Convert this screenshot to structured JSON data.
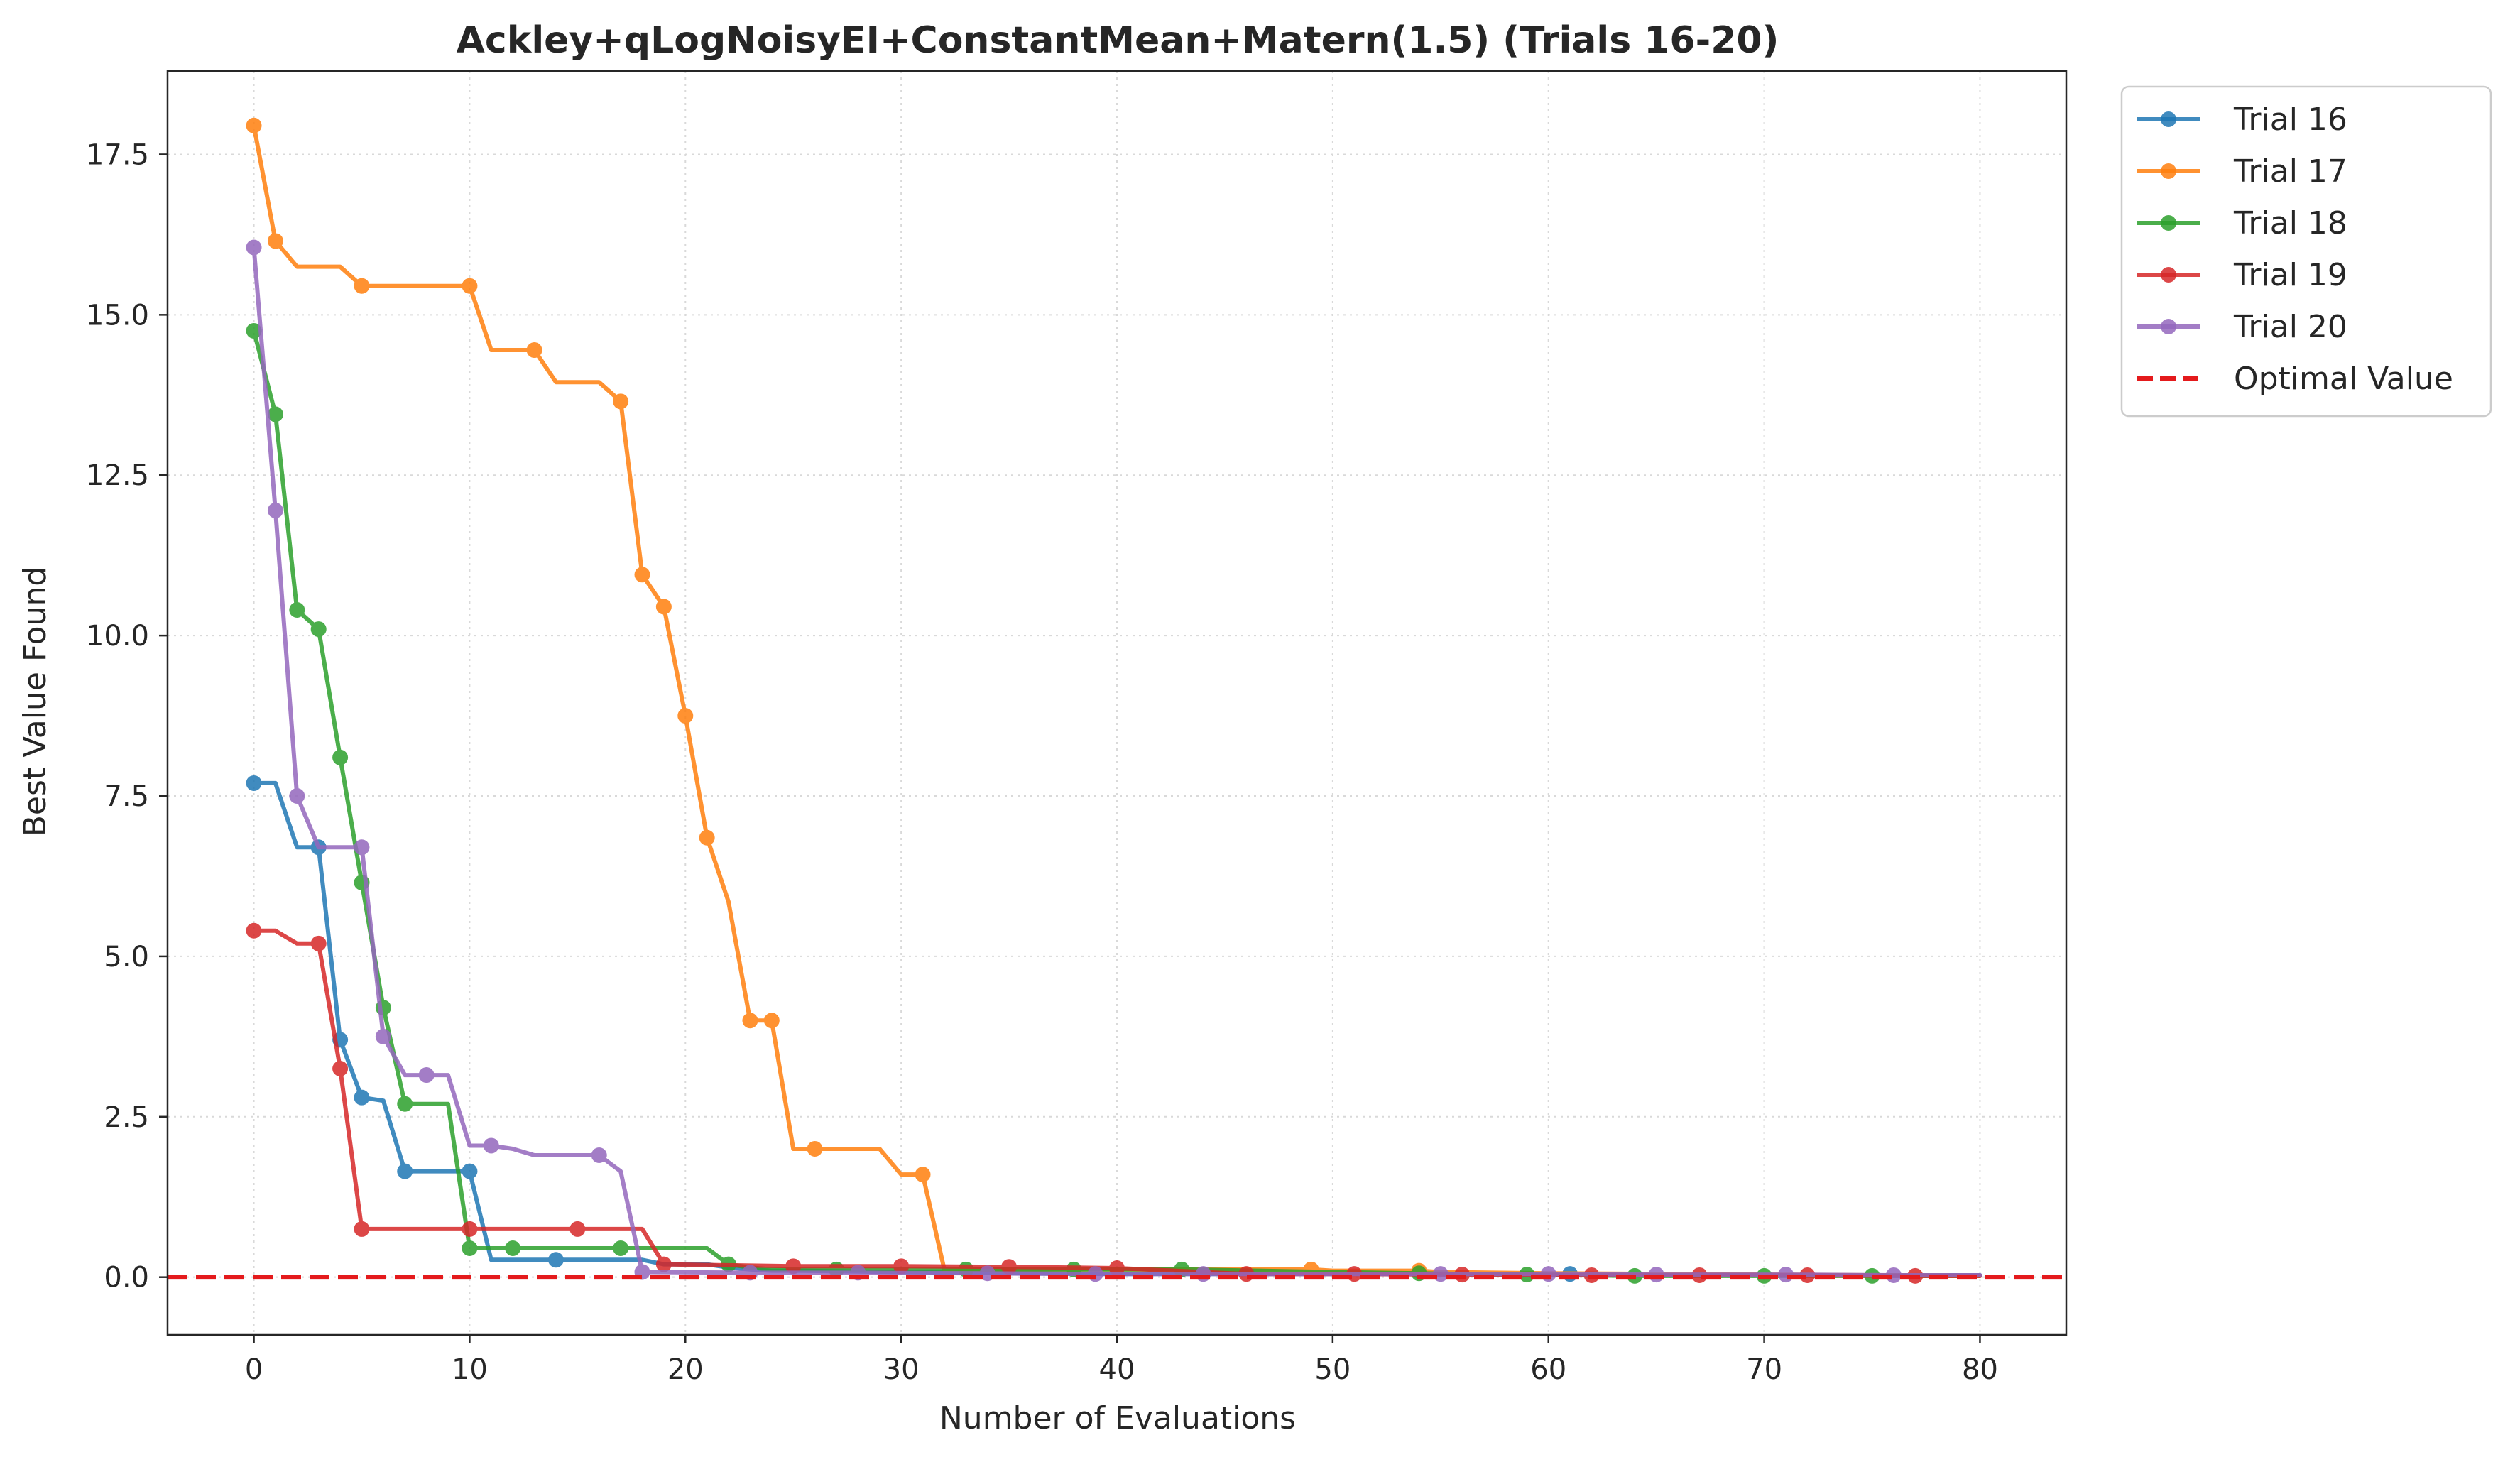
{
  "chart_data": {
    "type": "line",
    "title": "Ackley+qLogNoisyEI+ConstantMean+Matern(1.5) (Trials 16-20)",
    "xlabel": "Number of Evaluations",
    "ylabel": "Best Value Found",
    "xlim": [
      -4,
      84
    ],
    "ylim": [
      -0.9,
      18.8
    ],
    "xticks": [
      0,
      10,
      20,
      30,
      40,
      50,
      60,
      70,
      80
    ],
    "yticks": [
      0.0,
      2.5,
      5.0,
      7.5,
      10.0,
      12.5,
      15.0,
      17.5
    ],
    "xtick_labels": [
      "0",
      "10",
      "20",
      "30",
      "40",
      "50",
      "60",
      "70",
      "80"
    ],
    "ytick_labels": [
      "0.0",
      "2.5",
      "5.0",
      "7.5",
      "10.0",
      "12.5",
      "15.0",
      "17.5"
    ],
    "grid": true,
    "legend_position": "outside-top-right",
    "optimal_value": 0.0,
    "optimal_label": "Optimal Value",
    "optimal_color": "#e41a1c",
    "series": [
      {
        "name": "Trial 16",
        "color": "#1f77b4",
        "x": [
          0,
          1,
          2,
          3,
          4,
          5,
          6,
          7,
          8,
          9,
          10,
          11,
          12,
          13,
          14,
          15,
          16,
          17,
          18,
          19,
          20,
          21,
          22,
          23,
          24,
          25,
          30,
          35,
          40,
          45,
          50,
          55,
          60,
          61,
          65,
          70,
          75,
          80
        ],
        "y": [
          7.7,
          7.7,
          6.7,
          6.7,
          3.7,
          2.8,
          2.75,
          1.65,
          1.65,
          1.65,
          1.65,
          0.27,
          0.27,
          0.27,
          0.27,
          0.27,
          0.27,
          0.27,
          0.27,
          0.2,
          0.2,
          0.2,
          0.15,
          0.12,
          0.1,
          0.1,
          0.08,
          0.06,
          0.05,
          0.05,
          0.05,
          0.05,
          0.05,
          0.05,
          0.03,
          0.03,
          0.03,
          0.03
        ],
        "markers": [
          0,
          3,
          4,
          5,
          7,
          10,
          14,
          61
        ]
      },
      {
        "name": "Trial 17",
        "color": "#ff7f0e",
        "x": [
          0,
          1,
          2,
          3,
          4,
          5,
          6,
          7,
          8,
          9,
          10,
          11,
          12,
          13,
          14,
          15,
          16,
          17,
          18,
          19,
          20,
          21,
          22,
          23,
          24,
          25,
          26,
          27,
          28,
          29,
          30,
          31,
          32,
          35,
          40,
          45,
          49,
          50,
          54,
          55,
          60,
          65,
          70,
          75,
          80
        ],
        "y": [
          17.95,
          16.15,
          15.75,
          15.75,
          15.75,
          15.45,
          15.45,
          15.45,
          15.45,
          15.45,
          15.45,
          14.45,
          14.45,
          14.45,
          13.95,
          13.95,
          13.95,
          13.65,
          10.95,
          10.45,
          8.75,
          6.85,
          5.85,
          4.0,
          4.0,
          2.0,
          2.0,
          2.0,
          2.0,
          2.0,
          1.6,
          1.6,
          0.12,
          0.12,
          0.12,
          0.12,
          0.12,
          0.1,
          0.1,
          0.08,
          0.06,
          0.05,
          0.04,
          0.03,
          0.02
        ],
        "markers": [
          0,
          1,
          5,
          10,
          13,
          17,
          18,
          19,
          20,
          21,
          23,
          24,
          26,
          31,
          49,
          54
        ]
      },
      {
        "name": "Trial 18",
        "color": "#2ca02c",
        "x": [
          0,
          1,
          2,
          3,
          4,
          5,
          6,
          7,
          8,
          9,
          10,
          11,
          12,
          13,
          14,
          15,
          16,
          17,
          18,
          19,
          20,
          21,
          22,
          23,
          24,
          25,
          27,
          30,
          33,
          38,
          43,
          50,
          54,
          59,
          64,
          70,
          75,
          80
        ],
        "y": [
          14.75,
          13.45,
          10.4,
          10.1,
          8.1,
          6.15,
          4.2,
          2.7,
          2.7,
          2.7,
          0.45,
          0.45,
          0.45,
          0.45,
          0.45,
          0.45,
          0.45,
          0.45,
          0.45,
          0.45,
          0.45,
          0.45,
          0.2,
          0.15,
          0.12,
          0.12,
          0.12,
          0.12,
          0.12,
          0.12,
          0.12,
          0.08,
          0.06,
          0.04,
          0.02,
          0.02,
          0.02,
          0.02
        ],
        "markers": [
          0,
          1,
          2,
          3,
          4,
          5,
          6,
          7,
          10,
          12,
          17,
          22,
          27,
          33,
          38,
          43,
          54,
          59,
          64,
          70,
          75
        ]
      },
      {
        "name": "Trial 19",
        "color": "#d62728",
        "x": [
          0,
          1,
          2,
          3,
          4,
          5,
          6,
          7,
          8,
          9,
          10,
          11,
          12,
          13,
          14,
          15,
          16,
          17,
          18,
          19,
          25,
          30,
          35,
          40,
          46,
          51,
          56,
          62,
          67,
          72,
          77,
          80
        ],
        "y": [
          5.4,
          5.4,
          5.2,
          5.2,
          3.25,
          0.75,
          0.75,
          0.75,
          0.75,
          0.75,
          0.75,
          0.75,
          0.75,
          0.75,
          0.75,
          0.75,
          0.75,
          0.75,
          0.75,
          0.2,
          0.17,
          0.17,
          0.16,
          0.14,
          0.05,
          0.05,
          0.04,
          0.03,
          0.03,
          0.03,
          0.02,
          0.02
        ],
        "markers": [
          0,
          3,
          4,
          5,
          10,
          15,
          19,
          25,
          30,
          35,
          40,
          46,
          51,
          56,
          62,
          67,
          72,
          77
        ]
      },
      {
        "name": "Trial 20",
        "color": "#9467bd",
        "x": [
          0,
          1,
          2,
          3,
          4,
          5,
          6,
          7,
          8,
          9,
          10,
          11,
          12,
          13,
          14,
          15,
          16,
          17,
          18,
          23,
          28,
          34,
          39,
          44,
          50,
          55,
          60,
          65,
          71,
          76,
          80
        ],
        "y": [
          16.05,
          11.95,
          7.5,
          6.7,
          6.7,
          6.7,
          3.75,
          3.15,
          3.15,
          3.15,
          2.05,
          2.05,
          2.0,
          1.9,
          1.9,
          1.9,
          1.9,
          1.65,
          0.08,
          0.07,
          0.07,
          0.06,
          0.05,
          0.05,
          0.05,
          0.05,
          0.05,
          0.04,
          0.04,
          0.03,
          0.03
        ],
        "markers": [
          0,
          1,
          2,
          5,
          6,
          8,
          11,
          16,
          18,
          23,
          28,
          34,
          39,
          44,
          55,
          60,
          65,
          71,
          76
        ]
      }
    ]
  }
}
